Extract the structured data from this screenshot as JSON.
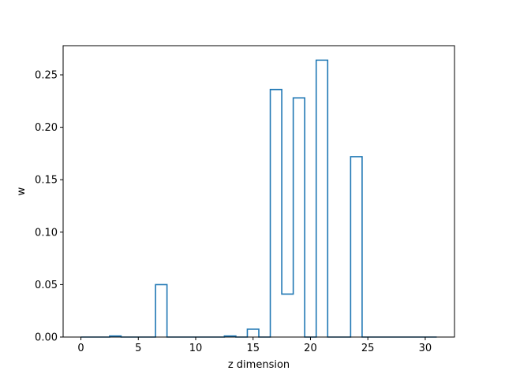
{
  "chart_data": {
    "type": "bar",
    "style": "step outline",
    "xlabel": "z dimension",
    "ylabel": "w",
    "title": "",
    "xlim": [
      -1.55,
      32.55
    ],
    "ylim": [
      0,
      0.2778
    ],
    "x": [
      0,
      1,
      2,
      3,
      4,
      5,
      6,
      7,
      8,
      9,
      10,
      11,
      12,
      13,
      14,
      15,
      16,
      17,
      18,
      19,
      20,
      21,
      22,
      23,
      24,
      25,
      26,
      27,
      28,
      29,
      30,
      31
    ],
    "values": [
      0,
      0,
      0,
      0.001,
      0,
      0,
      0,
      0.05,
      0,
      0,
      0,
      0,
      0,
      0.001,
      0,
      0.0075,
      0,
      0.236,
      0.041,
      0.228,
      0,
      0.264,
      0,
      0,
      0.172,
      0,
      0,
      0,
      0,
      0,
      0,
      0
    ],
    "xticks": [
      0,
      5,
      10,
      15,
      20,
      25,
      30
    ],
    "xtick_labels": [
      "0",
      "5",
      "10",
      "15",
      "20",
      "25",
      "30"
    ],
    "yticks": [
      0,
      0.05,
      0.1,
      0.15,
      0.2,
      0.25
    ],
    "ytick_labels": [
      "0.00",
      "0.05",
      "0.10",
      "0.15",
      "0.20",
      "0.25"
    ],
    "color": "#1f77b4",
    "grid": false,
    "legend": "none"
  }
}
